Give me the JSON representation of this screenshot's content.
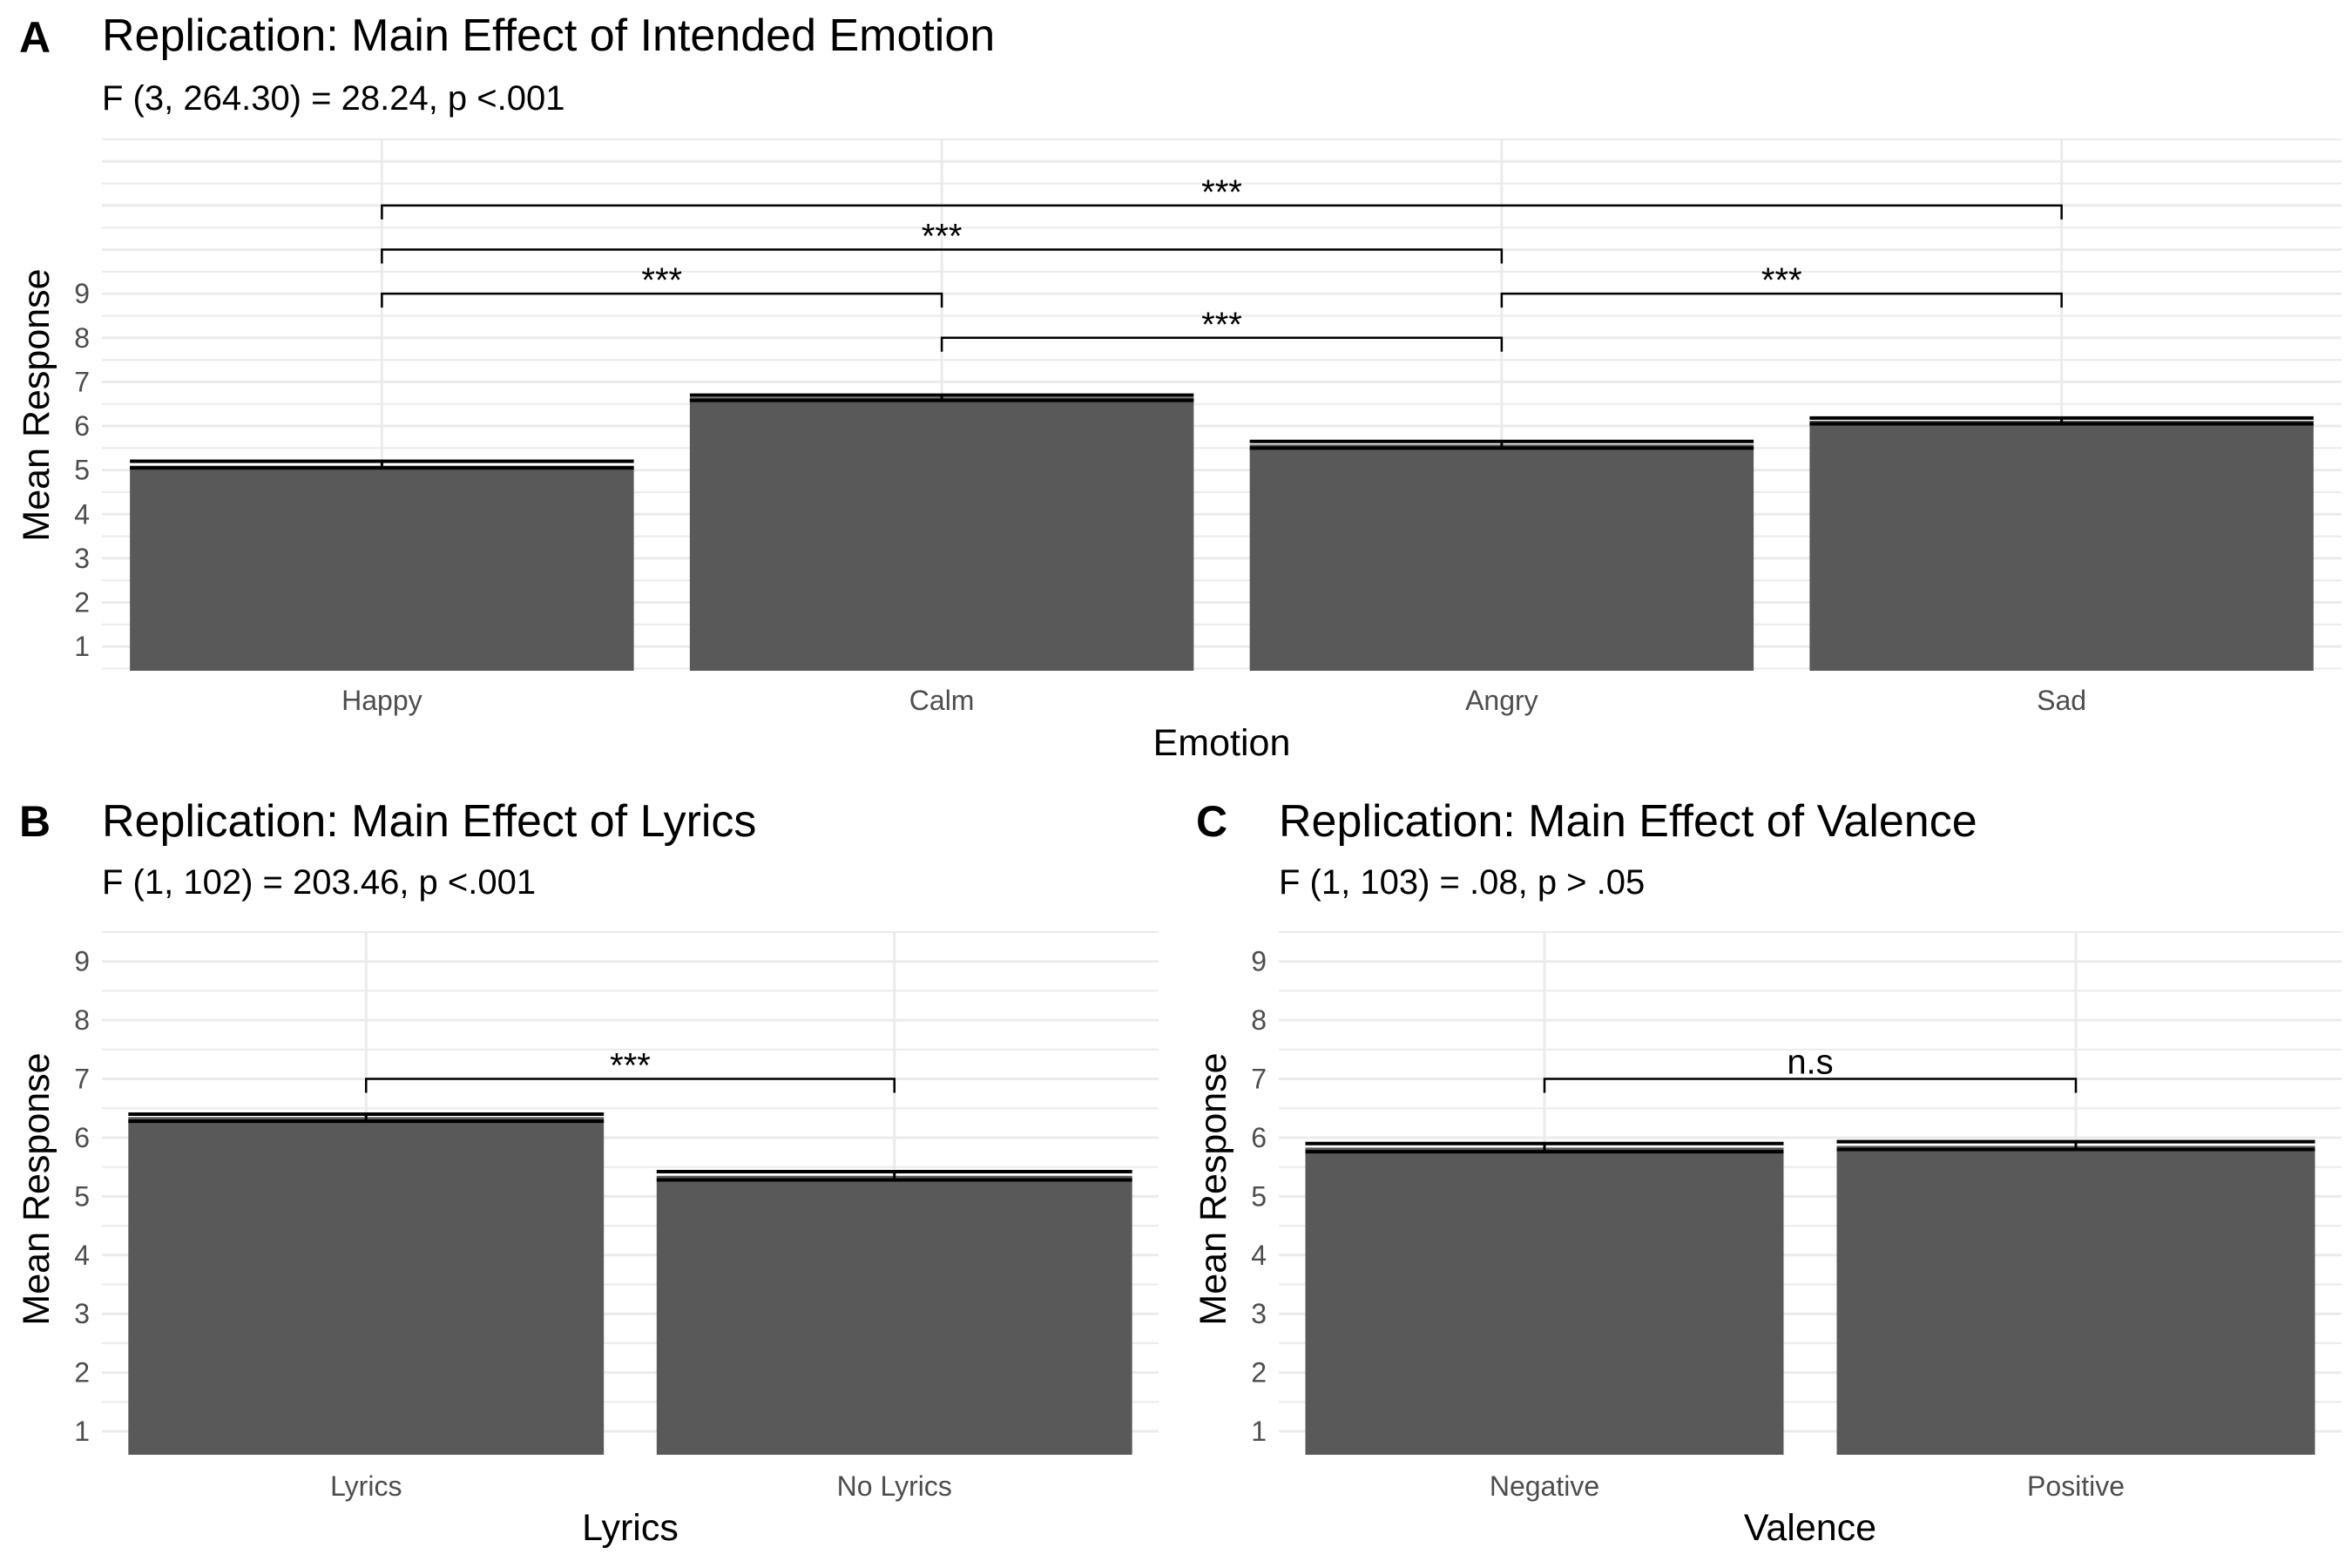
{
  "chart_data": [
    {
      "id": "A",
      "type": "bar",
      "panel_letter": "A",
      "title": "Replication: Main Effect of Intended Emotion",
      "subtitle": "F (3, 264.30) = 28.24, p <.001",
      "xlabel": "Emotion",
      "ylabel": "Mean Response",
      "categories": [
        "Happy",
        "Calm",
        "Angry",
        "Sad"
      ],
      "values": [
        5.1,
        6.65,
        5.58,
        6.12
      ],
      "error_low": [
        5.05,
        6.58,
        5.5,
        6.05
      ],
      "error_high": [
        5.2,
        6.7,
        5.65,
        6.18
      ],
      "yticks": [
        1,
        2,
        3,
        4,
        5,
        6,
        7,
        8,
        9
      ],
      "ylim": [
        0.45,
        12.5
      ],
      "grid": true,
      "bar_color": "#595959",
      "comparisons": [
        {
          "from": 0,
          "to": 1,
          "level": 9.0,
          "label": "***"
        },
        {
          "from": 1,
          "to": 2,
          "level": 8.0,
          "label": "***"
        },
        {
          "from": 2,
          "to": 3,
          "level": 9.0,
          "label": "***"
        },
        {
          "from": 0,
          "to": 2,
          "level": 10.0,
          "label": "***"
        },
        {
          "from": 0,
          "to": 3,
          "level": 11.0,
          "label": "***"
        }
      ]
    },
    {
      "id": "B",
      "type": "bar",
      "panel_letter": "B",
      "title": "Replication: Main Effect of Lyrics",
      "subtitle": "F (1, 102) = 203.46, p <.001",
      "xlabel": "Lyrics",
      "ylabel": "Mean Response",
      "categories": [
        "Lyrics",
        "No Lyrics"
      ],
      "values": [
        6.35,
        5.35
      ],
      "error_low": [
        6.28,
        5.28
      ],
      "error_high": [
        6.4,
        5.42
      ],
      "yticks": [
        1,
        2,
        3,
        4,
        5,
        6,
        7,
        8,
        9
      ],
      "ylim": [
        0.6,
        9.5
      ],
      "grid": true,
      "bar_color": "#595959",
      "comparisons": [
        {
          "from": 0,
          "to": 1,
          "level": 7.0,
          "label": "***"
        }
      ]
    },
    {
      "id": "C",
      "type": "bar",
      "panel_letter": "C",
      "title": "Replication: Main Effect of Valence",
      "subtitle": "F (1, 103) = .08, p > .05",
      "xlabel": "Valence",
      "ylabel": "Mean Response",
      "categories": [
        "Negative",
        "Positive"
      ],
      "values": [
        5.83,
        5.86
      ],
      "error_low": [
        5.76,
        5.8
      ],
      "error_high": [
        5.9,
        5.93
      ],
      "yticks": [
        1,
        2,
        3,
        4,
        5,
        6,
        7,
        8,
        9
      ],
      "ylim": [
        0.6,
        9.5
      ],
      "grid": true,
      "bar_color": "#595959",
      "comparisons": [
        {
          "from": 0,
          "to": 1,
          "level": 7.0,
          "label": "n.s"
        }
      ]
    }
  ]
}
